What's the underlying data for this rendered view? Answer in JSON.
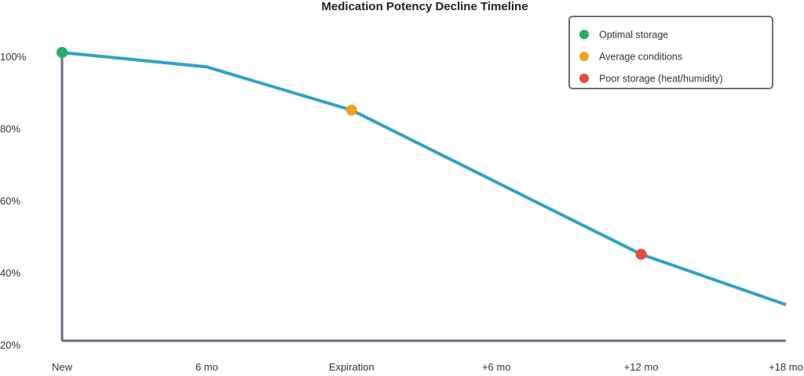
{
  "chart_data": {
    "type": "line",
    "title": "Medication Potency Decline Timeline",
    "xlabel": "",
    "ylabel": "",
    "categories": [
      "New",
      "6 mo",
      "Expiration",
      "+6 mo",
      "+12 mo",
      "+18 mo"
    ],
    "values": [
      100,
      96,
      84,
      64,
      44,
      30
    ],
    "ylim": [
      20,
      100
    ],
    "yticks": [
      "20%",
      "40%",
      "60%",
      "80%",
      "100%"
    ],
    "ytick_values": [
      20,
      40,
      60,
      80,
      100
    ],
    "grid": false,
    "line_color": "#31a2c4",
    "axis_color": "#6e6a85",
    "markers": [
      {
        "category_index": 0,
        "color": "#27ae60"
      },
      {
        "category_index": 2,
        "color": "#f0a020"
      },
      {
        "category_index": 4,
        "color": "#e74c3c"
      }
    ],
    "legend": {
      "placement": "top-right",
      "entries": [
        {
          "label": "Optimal storage",
          "color": "#27ae60"
        },
        {
          "label": "Average conditions",
          "color": "#f0a020"
        },
        {
          "label": "Poor storage (heat/humidity)",
          "color": "#e74c3c"
        }
      ]
    }
  }
}
